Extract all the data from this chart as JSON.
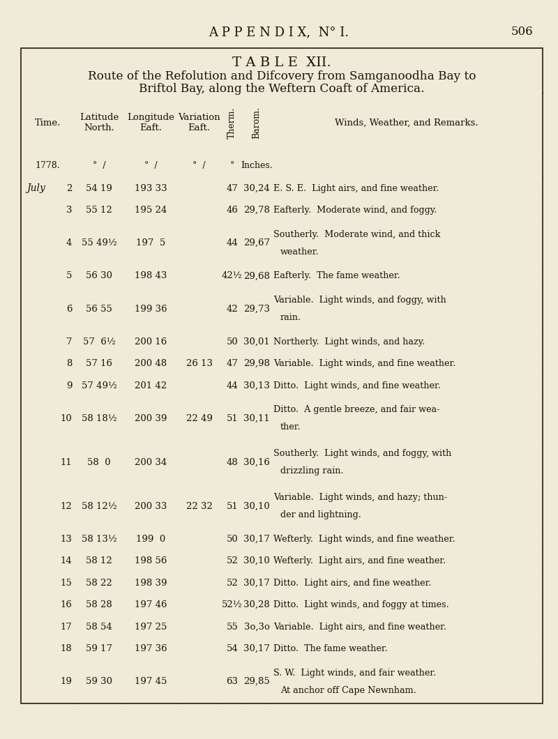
{
  "page_header": "A P P E N D I X,  N° I.",
  "page_number": "506",
  "table_title_line1": "T A B L E  XII.",
  "table_subtitle": "Route of the Refolution and Difcovery from Samganoodha Bay to",
  "table_subtitle2": "Briftol Bay, along the Weftern Coaft of America.",
  "col_headers": [
    "Time.",
    "Latitude\nNorth.",
    "Longitude\nEaft.",
    "Variation\nEaft.",
    "Therm.",
    "Barom.",
    "Winds, Weather, and Remarks."
  ],
  "sub_headers": [
    "1778.",
    "°  /",
    "°  /",
    "°  /",
    "°",
    "Inches.",
    ""
  ],
  "rows": [
    {
      "month": "July",
      "day": "2",
      "lat": "54 19",
      "lon": "193 33",
      "var": "",
      "therm": "47",
      "barom": "30,24",
      "remarks": "E. S. E.  Light airs, and fine weather.",
      "multiline": false
    },
    {
      "month": "",
      "day": "3",
      "lat": "55 12",
      "lon": "195 24",
      "var": "",
      "therm": "46",
      "barom": "29,78",
      "remarks": "Eafterly.  Moderate wind, and foggy.",
      "multiline": false
    },
    {
      "month": "",
      "day": "4",
      "lat": "55 49½",
      "lon": "197  5",
      "var": "",
      "therm": "44",
      "barom": "29,67",
      "remarks1": "Southerly.  Moderate wind, and thick",
      "remarks2": "    weather.",
      "multiline": true
    },
    {
      "month": "",
      "day": "5",
      "lat": "56 30",
      "lon": "198 43",
      "var": "",
      "therm": "42½",
      "barom": "29,68",
      "remarks": "Eafterly.  The fame weather.",
      "multiline": false
    },
    {
      "month": "",
      "day": "6",
      "lat": "56 55",
      "lon": "199 36",
      "var": "",
      "therm": "42",
      "barom": "29,73",
      "remarks1": "Variable.  Light winds, and foggy, with",
      "remarks2": "    rain.",
      "multiline": true
    },
    {
      "month": "",
      "day": "7",
      "lat": "57  6½",
      "lon": "200 16",
      "var": "",
      "therm": "50",
      "barom": "30,01",
      "remarks": "Northerly.  Light winds, and hazy.",
      "multiline": false
    },
    {
      "month": "",
      "day": "8",
      "lat": "57 16",
      "lon": "200 48",
      "var": "26 13",
      "therm": "47",
      "barom": "29,98",
      "remarks": "Variable.  Light winds, and fine weather.",
      "multiline": false
    },
    {
      "month": "",
      "day": "9",
      "lat": "57 49½",
      "lon": "201 42",
      "var": "",
      "therm": "44",
      "barom": "30,13",
      "remarks": "Ditto.  Light winds, and fine weather.",
      "multiline": false
    },
    {
      "month": "",
      "day": "10",
      "lat": "58 18½",
      "lon": "200 39",
      "var": "22 49",
      "therm": "51",
      "barom": "30,11",
      "remarks1": "Ditto.  A gentle breeze, and fair wea-",
      "remarks2": "    ther.",
      "multiline": true
    },
    {
      "month": "",
      "day": "11",
      "lat": "58  0",
      "lon": "200 34",
      "var": "",
      "therm": "48",
      "barom": "30,16",
      "remarks1": "Southerly.  Light winds, and foggy, with",
      "remarks2": "    drizzling rain.",
      "multiline": true
    },
    {
      "month": "",
      "day": "12",
      "lat": "58 12½",
      "lon": "200 33",
      "var": "22 32",
      "therm": "51",
      "barom": "30,10",
      "remarks1": "Variable.  Light winds, and hazy; thun-",
      "remarks2": "    der and lightning.",
      "multiline": true
    },
    {
      "month": "",
      "day": "13",
      "lat": "58 13½",
      "lon": "199  0",
      "var": "",
      "therm": "50",
      "barom": "30,17",
      "remarks": "Wefterly.  Light winds, and fine weather.",
      "multiline": false
    },
    {
      "month": "",
      "day": "14",
      "lat": "58 12",
      "lon": "198 56",
      "var": "",
      "therm": "52",
      "barom": "30,10",
      "remarks": "Wefterly.  Light airs, and fine weather.",
      "multiline": false
    },
    {
      "month": "",
      "day": "15",
      "lat": "58 22",
      "lon": "198 39",
      "var": "",
      "therm": "52",
      "barom": "30,17",
      "remarks": "Ditto.  Light airs, and fine weather.",
      "multiline": false
    },
    {
      "month": "",
      "day": "16",
      "lat": "58 28",
      "lon": "197 46",
      "var": "",
      "therm": "52½",
      "barom": "30,28",
      "remarks": "Ditto.  Light winds, and foggy at times.",
      "multiline": false
    },
    {
      "month": "",
      "day": "17",
      "lat": "58 54",
      "lon": "197 25",
      "var": "",
      "therm": "55",
      "barom": "3o,3o",
      "remarks": "Variable.  Light airs, and fine weather.",
      "multiline": false
    },
    {
      "month": "",
      "day": "18",
      "lat": "59 17",
      "lon": "197 36",
      "var": "",
      "therm": "54",
      "barom": "30,17",
      "remarks": "Ditto.  The fame weather.",
      "multiline": false
    },
    {
      "month": "",
      "day": "19",
      "lat": "59 30",
      "lon": "197 45",
      "var": "",
      "therm": "63",
      "barom": "29,85",
      "remarks1": "S. W.  Light winds, and fair weather.",
      "remarks2": "    At anchor off Cape Newnham.",
      "multiline": true
    }
  ],
  "bg_color": "#f0ead8",
  "text_color": "#1a1008",
  "line_color": "#2a1a08"
}
